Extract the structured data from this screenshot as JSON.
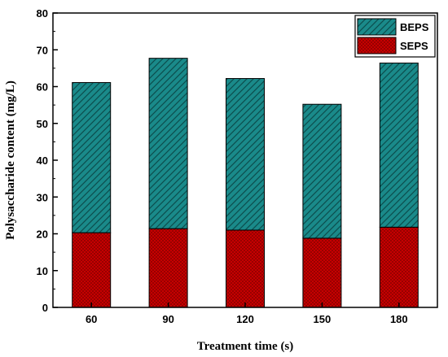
{
  "chart_data": {
    "type": "bar",
    "stacked": true,
    "categories": [
      "60",
      "90",
      "120",
      "150",
      "180"
    ],
    "series": [
      {
        "name": "SEPS",
        "values": [
          20.3,
          21.4,
          21.0,
          18.8,
          21.8
        ],
        "color": "#cc0000",
        "pattern": "crosshatch"
      },
      {
        "name": "BEPS",
        "values": [
          40.8,
          46.3,
          41.2,
          36.4,
          44.6
        ],
        "color": "#1a8a8a",
        "pattern": "diagonal"
      }
    ],
    "totals": [
      61.1,
      67.7,
      62.2,
      55.2,
      66.4
    ],
    "xlabel": "Treatment time (s)",
    "ylabel": "Polysaccharide content (mg/L)",
    "ylim": [
      0,
      80
    ],
    "yticks": [
      "0",
      "10",
      "20",
      "30",
      "40",
      "50",
      "60",
      "70",
      "80"
    ],
    "grid": false,
    "legend_position": "top-right",
    "legend": [
      "BEPS",
      "SEPS"
    ]
  }
}
